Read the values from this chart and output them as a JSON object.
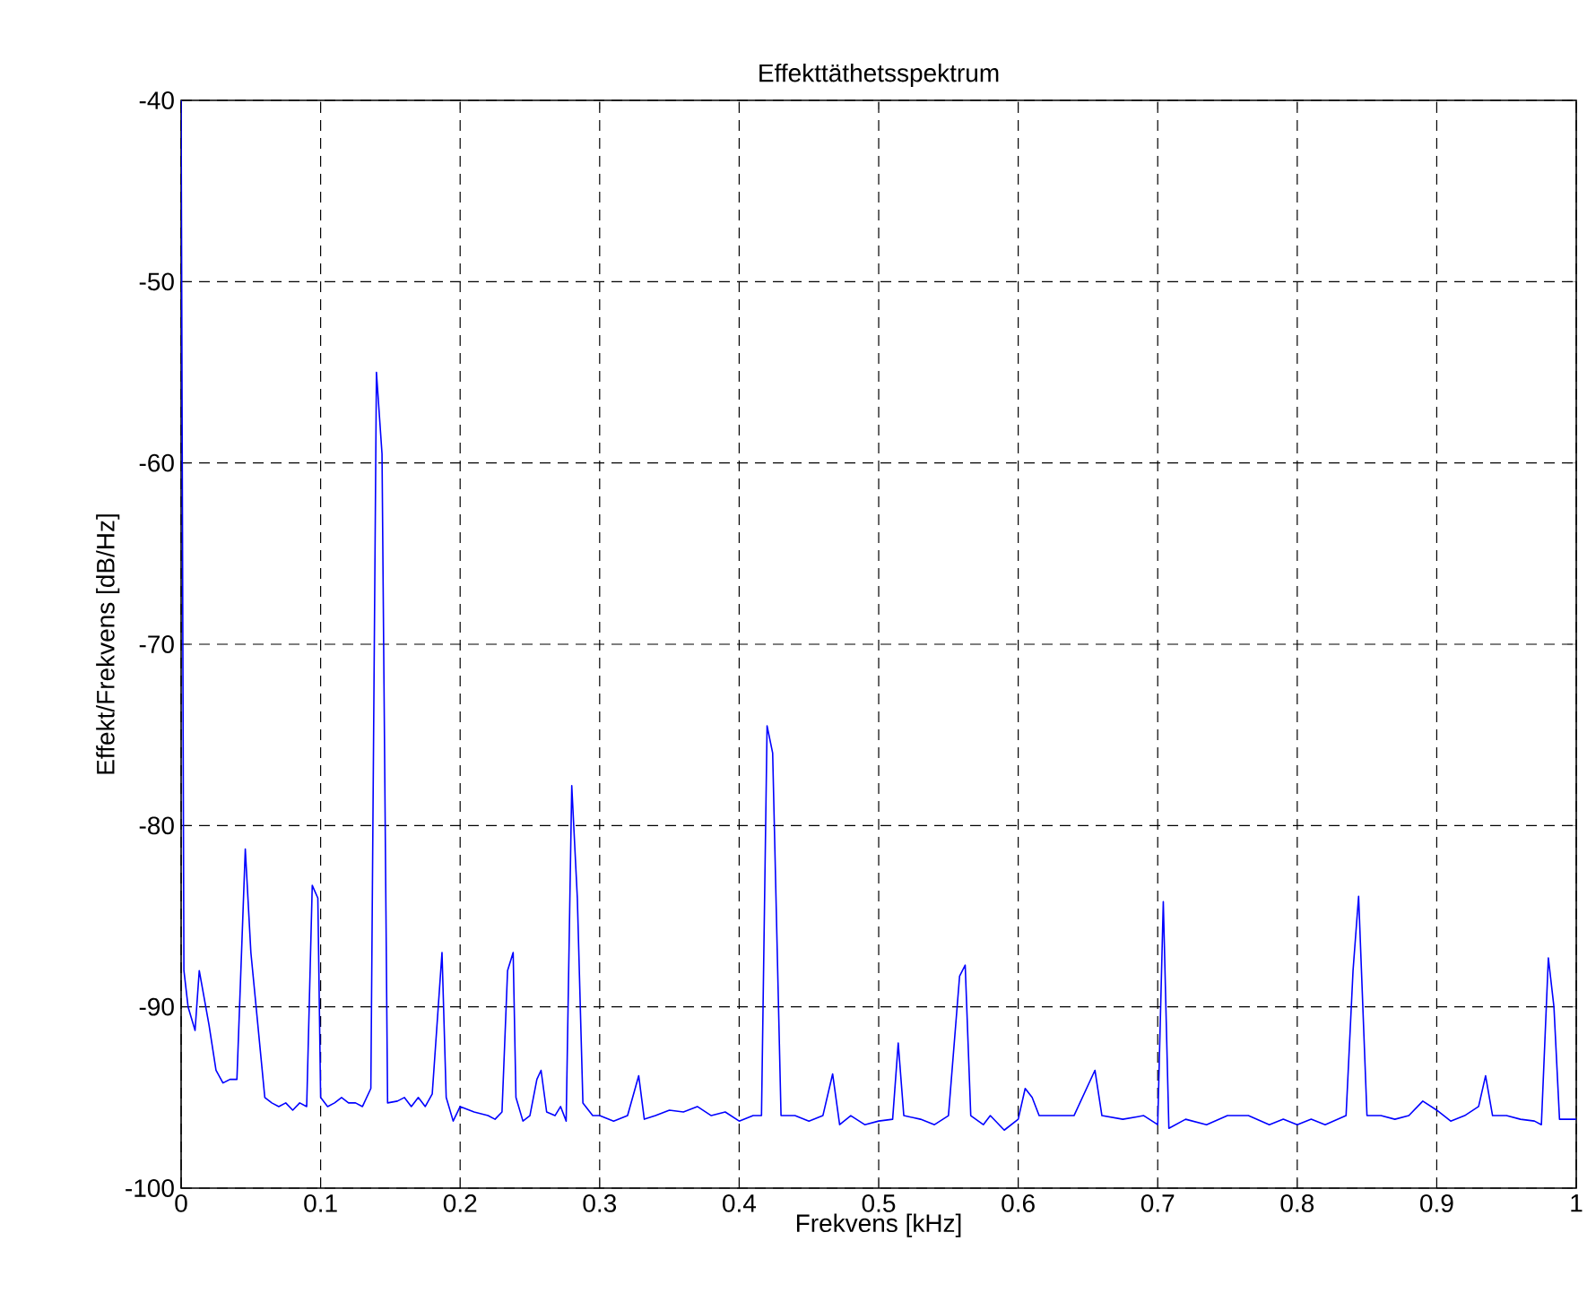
{
  "chart_data": {
    "type": "line",
    "title": "Effekttäthetsspektrum",
    "xlabel": "Frekvens [kHz]",
    "ylabel": "Effekt/Frekvens [dB/Hz]",
    "grid": true,
    "xlim": [
      0,
      1
    ],
    "ylim": [
      -100,
      -40
    ],
    "xticks": [
      0,
      0.1,
      0.2,
      0.3,
      0.4,
      0.5,
      0.6,
      0.7,
      0.8,
      0.9,
      1
    ],
    "yticks": [
      -100,
      -90,
      -80,
      -70,
      -60,
      -50,
      -40
    ],
    "series": [
      {
        "color": "#0000ff",
        "line_style": "solid",
        "x": [
          0,
          0.002,
          0.005,
          0.01,
          0.013,
          0.02,
          0.025,
          0.03,
          0.035,
          0.04,
          0.046,
          0.05,
          0.055,
          0.06,
          0.065,
          0.07,
          0.075,
          0.08,
          0.085,
          0.09,
          0.094,
          0.098,
          0.1,
          0.105,
          0.11,
          0.115,
          0.12,
          0.125,
          0.13,
          0.136,
          0.14,
          0.144,
          0.148,
          0.155,
          0.16,
          0.165,
          0.17,
          0.175,
          0.18,
          0.187,
          0.19,
          0.195,
          0.2,
          0.21,
          0.22,
          0.225,
          0.23,
          0.234,
          0.238,
          0.24,
          0.245,
          0.25,
          0.255,
          0.258,
          0.262,
          0.268,
          0.272,
          0.276,
          0.28,
          0.284,
          0.288,
          0.295,
          0.3,
          0.31,
          0.32,
          0.328,
          0.332,
          0.34,
          0.35,
          0.36,
          0.37,
          0.38,
          0.39,
          0.4,
          0.41,
          0.416,
          0.42,
          0.424,
          0.43,
          0.44,
          0.45,
          0.46,
          0.467,
          0.472,
          0.48,
          0.49,
          0.5,
          0.51,
          0.514,
          0.518,
          0.53,
          0.54,
          0.55,
          0.558,
          0.562,
          0.566,
          0.575,
          0.58,
          0.59,
          0.6,
          0.605,
          0.61,
          0.615,
          0.625,
          0.64,
          0.655,
          0.66,
          0.675,
          0.69,
          0.7,
          0.704,
          0.708,
          0.72,
          0.735,
          0.75,
          0.765,
          0.78,
          0.79,
          0.8,
          0.81,
          0.82,
          0.835,
          0.84,
          0.844,
          0.85,
          0.86,
          0.87,
          0.88,
          0.89,
          0.9,
          0.91,
          0.92,
          0.93,
          0.935,
          0.94,
          0.95,
          0.96,
          0.97,
          0.975,
          0.98,
          0.984,
          0.988,
          1.0
        ],
        "values": [
          -40,
          -88,
          -90,
          -91.3,
          -88,
          -91,
          -93.5,
          -94.2,
          -94,
          -94,
          -81.3,
          -87,
          -91,
          -95,
          -95.3,
          -95.5,
          -95.3,
          -95.7,
          -95.3,
          -95.5,
          -83.3,
          -84,
          -95,
          -95.5,
          -95.3,
          -95,
          -95.3,
          -95.3,
          -95.5,
          -94.5,
          -55,
          -59.5,
          -95.3,
          -95.2,
          -95,
          -95.5,
          -95,
          -95.5,
          -94.8,
          -87,
          -95,
          -96.3,
          -95.5,
          -95.8,
          -96,
          -96.2,
          -95.8,
          -88,
          -87,
          -95,
          -96.3,
          -96,
          -94,
          -93.5,
          -95.8,
          -96,
          -95.5,
          -96.3,
          -77.8,
          -84,
          -95.3,
          -96,
          -96,
          -96.3,
          -96,
          -93.8,
          -96.2,
          -96,
          -95.7,
          -95.8,
          -95.5,
          -96,
          -95.8,
          -96.3,
          -96,
          -96,
          -74.5,
          -76,
          -96,
          -96,
          -96.3,
          -96,
          -93.7,
          -96.5,
          -96,
          -96.5,
          -96.3,
          -96.2,
          -92,
          -96,
          -96.2,
          -96.5,
          -96,
          -88.3,
          -87.7,
          -96,
          -96.5,
          -96,
          -96.8,
          -96.2,
          -94.5,
          -95,
          -96,
          -96,
          -96,
          -93.5,
          -96,
          -96.2,
          -96,
          -96.5,
          -84.2,
          -96.7,
          -96.2,
          -96.5,
          -96,
          -96,
          -96.5,
          -96.2,
          -96.5,
          -96.2,
          -96.5,
          -96,
          -88,
          -83.9,
          -96,
          -96,
          -96.2,
          -96,
          -95.2,
          -95.7,
          -96.3,
          -96,
          -95.5,
          -93.8,
          -96,
          -96,
          -96.2,
          -96.3,
          -96.5,
          -87.3,
          -90,
          -96.2,
          -96.2
        ]
      }
    ]
  }
}
